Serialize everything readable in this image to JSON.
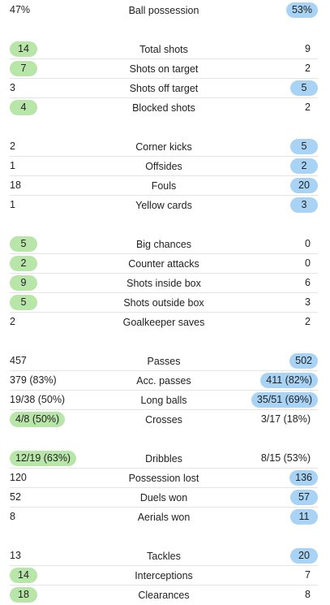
{
  "groups": [
    [
      {
        "label": "Ball possession",
        "home": "47%",
        "away": "53%",
        "highlight": "away"
      }
    ],
    [
      {
        "label": "Total shots",
        "home": "14",
        "away": "9",
        "highlight": "home"
      },
      {
        "label": "Shots on target",
        "home": "7",
        "away": "2",
        "highlight": "home"
      },
      {
        "label": "Shots off target",
        "home": "3",
        "away": "5",
        "highlight": "away"
      },
      {
        "label": "Blocked shots",
        "home": "4",
        "away": "2",
        "highlight": "home"
      }
    ],
    [
      {
        "label": "Corner kicks",
        "home": "2",
        "away": "5",
        "highlight": "away"
      },
      {
        "label": "Offsides",
        "home": "1",
        "away": "2",
        "highlight": "away"
      },
      {
        "label": "Fouls",
        "home": "18",
        "away": "20",
        "highlight": "away"
      },
      {
        "label": "Yellow cards",
        "home": "1",
        "away": "3",
        "highlight": "away"
      }
    ],
    [
      {
        "label": "Big chances",
        "home": "5",
        "away": "0",
        "highlight": "home"
      },
      {
        "label": "Counter attacks",
        "home": "2",
        "away": "0",
        "highlight": "home"
      },
      {
        "label": "Shots inside box",
        "home": "9",
        "away": "6",
        "highlight": "home"
      },
      {
        "label": "Shots outside box",
        "home": "5",
        "away": "3",
        "highlight": "home"
      },
      {
        "label": "Goalkeeper saves",
        "home": "2",
        "away": "2",
        "highlight": "none"
      }
    ],
    [
      {
        "label": "Passes",
        "home": "457",
        "away": "502",
        "highlight": "away"
      },
      {
        "label": "Acc. passes",
        "home": "379 (83%)",
        "away": "411 (82%)",
        "highlight": "away"
      },
      {
        "label": "Long balls",
        "home": "19/38 (50%)",
        "away": "35/51 (69%)",
        "highlight": "away"
      },
      {
        "label": "Crosses",
        "home": "4/8 (50%)",
        "away": "3/17 (18%)",
        "highlight": "home"
      }
    ],
    [
      {
        "label": "Dribbles",
        "home": "12/19 (63%)",
        "away": "8/15 (53%)",
        "highlight": "home"
      },
      {
        "label": "Possession lost",
        "home": "120",
        "away": "136",
        "highlight": "away"
      },
      {
        "label": "Duels won",
        "home": "52",
        "away": "57",
        "highlight": "away"
      },
      {
        "label": "Aerials won",
        "home": "8",
        "away": "11",
        "highlight": "away"
      }
    ],
    [
      {
        "label": "Tackles",
        "home": "13",
        "away": "20",
        "highlight": "away"
      },
      {
        "label": "Interceptions",
        "home": "14",
        "away": "7",
        "highlight": "home"
      },
      {
        "label": "Clearances",
        "home": "18",
        "away": "8",
        "highlight": "home"
      }
    ]
  ],
  "colors": {
    "home_highlight": "#b8e5a8",
    "away_highlight": "#a9d3f5"
  }
}
